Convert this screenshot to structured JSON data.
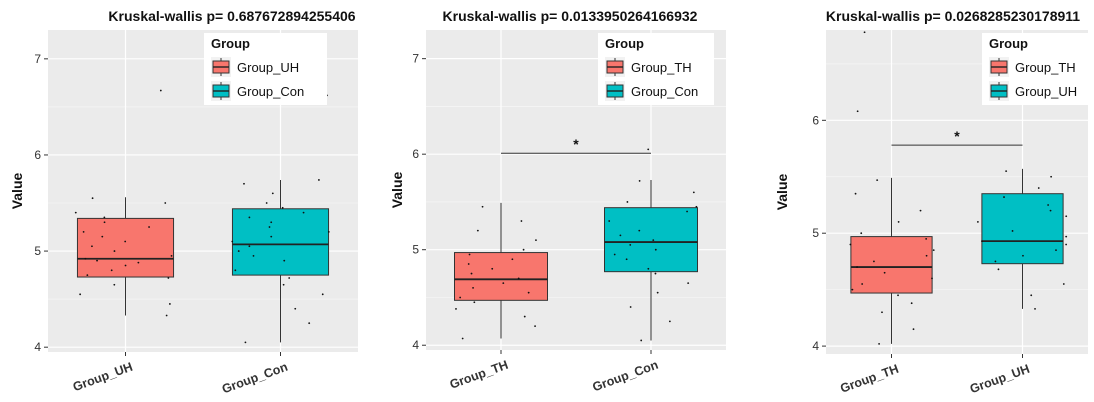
{
  "chart_data": [
    {
      "type": "box",
      "title": "Kruskal-wallis p= 0.687672894255406",
      "ylabel": "Value",
      "xlabel": "",
      "ylim": [
        3.95,
        7.3
      ],
      "yticks": [
        4,
        5,
        6,
        7
      ],
      "grid": true,
      "legend": {
        "title": "Group",
        "placement": "top-right",
        "entries": [
          "Group_UH",
          "Group_Con"
        ]
      },
      "categories": [
        "Group_UH",
        "Group_Con"
      ],
      "boxes": [
        {
          "name": "Group_UH",
          "color": "#F8766D",
          "min": 4.33,
          "q1": 4.73,
          "median": 4.92,
          "q3": 5.34,
          "max": 5.56,
          "points": [
            4.33,
            4.45,
            4.55,
            4.65,
            4.72,
            4.75,
            4.8,
            4.85,
            4.88,
            4.9,
            4.92,
            4.95,
            5.0,
            5.05,
            5.1,
            5.15,
            5.2,
            5.25,
            5.3,
            5.35,
            5.4,
            5.5,
            5.55,
            6.67
          ]
        },
        {
          "name": "Group_Con",
          "color": "#00BFC4",
          "min": 4.05,
          "q1": 4.75,
          "median": 5.07,
          "q3": 5.44,
          "max": 5.74,
          "points": [
            4.05,
            4.25,
            4.4,
            4.55,
            4.65,
            4.72,
            4.8,
            4.9,
            4.95,
            5.0,
            5.05,
            5.1,
            5.15,
            5.2,
            5.25,
            5.3,
            5.35,
            5.4,
            5.45,
            5.5,
            5.6,
            5.7,
            5.74,
            6.62
          ]
        }
      ],
      "significance": null
    },
    {
      "type": "box",
      "title": "Kruskal-wallis p= 0.0133950264166932",
      "ylabel": "Value",
      "xlabel": "",
      "ylim": [
        3.95,
        7.3
      ],
      "yticks": [
        4,
        5,
        6,
        7
      ],
      "grid": true,
      "legend": {
        "title": "Group",
        "placement": "top-right",
        "entries": [
          "Group_TH",
          "Group_Con"
        ]
      },
      "categories": [
        "Group_TH",
        "Group_Con"
      ],
      "boxes": [
        {
          "name": "Group_TH",
          "color": "#F8766D",
          "min": 4.07,
          "q1": 4.47,
          "median": 4.69,
          "q3": 4.97,
          "max": 5.49,
          "points": [
            4.07,
            4.2,
            4.3,
            4.38,
            4.45,
            4.5,
            4.55,
            4.6,
            4.65,
            4.7,
            4.75,
            4.8,
            4.85,
            4.9,
            4.95,
            5.0,
            5.1,
            5.2,
            5.3,
            5.45
          ]
        },
        {
          "name": "Group_Con",
          "color": "#00BFC4",
          "min": 4.05,
          "q1": 4.77,
          "median": 5.08,
          "q3": 5.44,
          "max": 5.73,
          "points": [
            4.05,
            4.25,
            4.4,
            4.55,
            4.65,
            4.75,
            4.8,
            4.9,
            4.95,
            5.0,
            5.05,
            5.1,
            5.15,
            5.2,
            5.3,
            5.4,
            5.45,
            5.5,
            5.6,
            5.72,
            6.05,
            7.05
          ]
        }
      ],
      "significance": {
        "label": "*",
        "y": 6.01
      }
    },
    {
      "type": "box",
      "title": "Kruskal-wallis p= 0.0268285230178911",
      "ylabel": "Value",
      "xlabel": "",
      "ylim": [
        3.93,
        6.8
      ],
      "yticks": [
        4,
        5,
        6
      ],
      "grid": true,
      "legend": {
        "title": "Group",
        "placement": "top-right",
        "entries": [
          "Group_TH",
          "Group_UH"
        ]
      },
      "categories": [
        "Group_TH",
        "Group_UH"
      ],
      "boxes": [
        {
          "name": "Group_TH",
          "color": "#F8766D",
          "min": 4.02,
          "q1": 4.47,
          "median": 4.7,
          "q3": 4.97,
          "max": 5.49,
          "points": [
            4.02,
            4.15,
            4.3,
            4.38,
            4.45,
            4.5,
            4.55,
            4.6,
            4.65,
            4.7,
            4.75,
            4.8,
            4.85,
            4.9,
            4.95,
            5.0,
            5.1,
            5.2,
            5.35,
            5.47,
            6.08,
            6.78
          ]
        },
        {
          "name": "Group_UH",
          "color": "#00BFC4",
          "min": 4.33,
          "q1": 4.73,
          "median": 4.93,
          "q3": 5.35,
          "max": 5.57,
          "points": [
            4.33,
            4.45,
            4.55,
            4.68,
            4.75,
            4.8,
            4.85,
            4.9,
            4.93,
            4.97,
            5.02,
            5.1,
            5.15,
            5.2,
            5.25,
            5.32,
            5.4,
            5.5,
            5.55
          ]
        }
      ],
      "significance": {
        "label": "*",
        "y": 5.78
      }
    }
  ]
}
